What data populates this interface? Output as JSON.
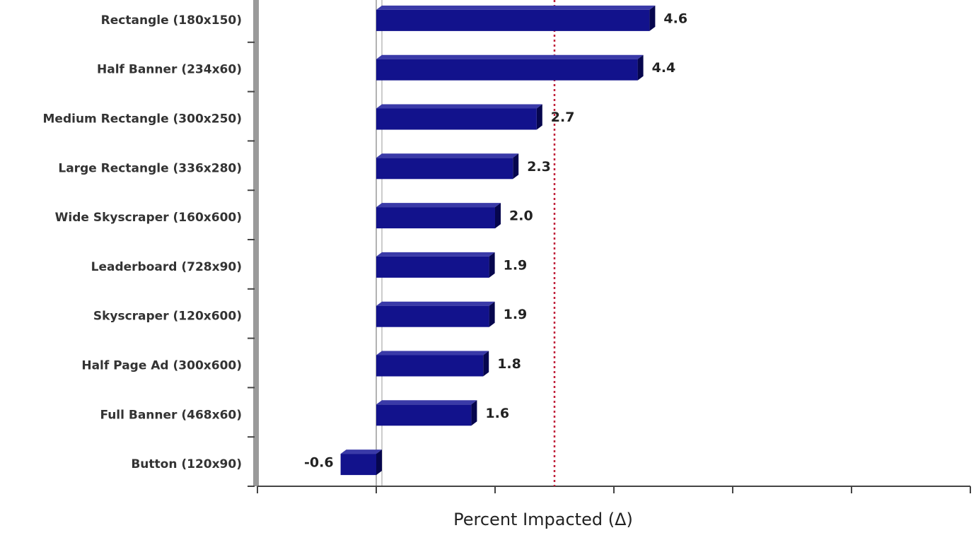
{
  "chart_data": {
    "type": "bar",
    "orientation": "horizontal",
    "categories": [
      "Rectangle (180x150)",
      "Half Banner (234x60)",
      "Medium Rectangle (300x250)",
      "Large Rectangle (336x280)",
      "Wide Skyscraper (160x600)",
      "Leaderboard (728x90)",
      "Skyscraper (120x600)",
      "Half Page Ad (300x600)",
      "Full Banner (468x60)",
      "Button (120x90)"
    ],
    "values": [
      4.6,
      4.4,
      2.7,
      2.3,
      2.0,
      1.9,
      1.9,
      1.8,
      1.6,
      -0.6
    ],
    "value_labels": [
      "4.6",
      "4.4",
      "2.7",
      "2.3",
      "2.0",
      "1.9",
      "1.9",
      "1.8",
      "1.6",
      "-0.6"
    ],
    "color": "#12128c",
    "xlabel": "Percent Impacted (Δ)",
    "xlim": [
      -2,
      10
    ],
    "xticks": [
      -2,
      0,
      2,
      4,
      6,
      8,
      10
    ],
    "reference_line": {
      "value": 3.0,
      "color": "#c0203a"
    }
  }
}
